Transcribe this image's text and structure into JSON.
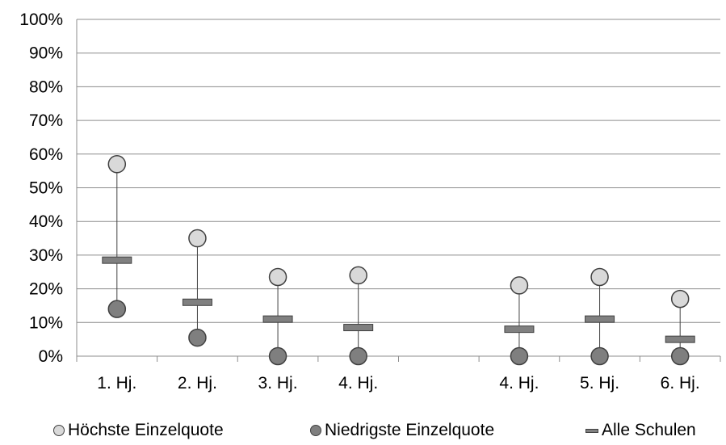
{
  "chart_data": {
    "type": "scatter",
    "title": "",
    "xlabel": "",
    "ylabel": "",
    "categories": [
      "1. Hj.",
      "2. Hj.",
      "3. Hj.",
      "4. Hj.",
      "",
      "4. Hj.",
      "5. Hj.",
      "6. Hj."
    ],
    "y_ticks": [
      "0%",
      "10%",
      "20%",
      "30%",
      "40%",
      "50%",
      "60%",
      "70%",
      "80%",
      "90%",
      "100%"
    ],
    "ylim": [
      0,
      100
    ],
    "grid": true,
    "legend_position": "bottom",
    "series": [
      {
        "name": "Höchste Einzelquote",
        "color": "#d9d9d9",
        "values": [
          57,
          35,
          23.5,
          24,
          null,
          21,
          23.5,
          17
        ]
      },
      {
        "name": "Niedrigste Einzelquote",
        "color": "#7f7f7f",
        "values": [
          14,
          5.5,
          0,
          0,
          null,
          0,
          0,
          0
        ]
      },
      {
        "name": "Alle Schulen",
        "color": "#808080",
        "values": [
          28.5,
          16,
          11,
          8.5,
          null,
          8,
          11,
          5
        ]
      }
    ]
  }
}
